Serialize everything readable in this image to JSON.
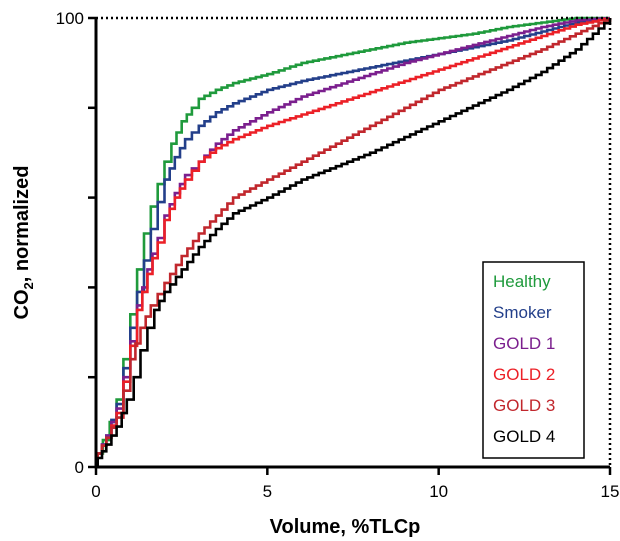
{
  "chart_data": {
    "type": "line",
    "xlabel": "Volume, %TLCp",
    "ylabel": "CO",
    "ylabel_sub": "2",
    "ylabel_suffix": ", normalized",
    "xlim": [
      0,
      15
    ],
    "ylim": [
      0,
      100
    ],
    "x_ticks": [
      0,
      5,
      10,
      15
    ],
    "x_tick_labels": [
      "0",
      "5",
      "10",
      "15"
    ],
    "y_ticks": [
      0,
      20,
      40,
      60,
      80,
      100
    ],
    "y_tick_labels": [
      "0",
      "",
      "",
      "",
      "",
      "100"
    ],
    "grid": false,
    "legend_position": "bottom-right",
    "series": [
      {
        "name": "Healthy",
        "color": "#1f9a3c",
        "points": [
          [
            0,
            0
          ],
          [
            0.05,
            3
          ],
          [
            0.2,
            6
          ],
          [
            0.4,
            10
          ],
          [
            0.6,
            15
          ],
          [
            0.8,
            24
          ],
          [
            1,
            34
          ],
          [
            1.2,
            44
          ],
          [
            1.4,
            52
          ],
          [
            1.6,
            58
          ],
          [
            1.8,
            63
          ],
          [
            2,
            68
          ],
          [
            2.2,
            72
          ],
          [
            2.5,
            77
          ],
          [
            2.8,
            80
          ],
          [
            3,
            82
          ],
          [
            3.5,
            84
          ],
          [
            4,
            85.5
          ],
          [
            5,
            87.5
          ],
          [
            6,
            90
          ],
          [
            7,
            91.5
          ],
          [
            8,
            93
          ],
          [
            9,
            94.5
          ],
          [
            10,
            95.5
          ],
          [
            11,
            96.5
          ],
          [
            12,
            98
          ],
          [
            13,
            99
          ],
          [
            14,
            100
          ],
          [
            15,
            100
          ]
        ]
      },
      {
        "name": "Smoker",
        "color": "#233f8a",
        "points": [
          [
            0,
            0
          ],
          [
            0.05,
            3
          ],
          [
            0.3,
            7
          ],
          [
            0.6,
            14
          ],
          [
            0.8,
            22
          ],
          [
            1,
            31
          ],
          [
            1.2,
            39
          ],
          [
            1.4,
            46
          ],
          [
            1.6,
            53
          ],
          [
            1.8,
            59
          ],
          [
            2,
            64
          ],
          [
            2.3,
            69
          ],
          [
            2.6,
            73
          ],
          [
            3,
            76
          ],
          [
            3.5,
            79
          ],
          [
            4,
            81
          ],
          [
            5,
            84
          ],
          [
            6,
            86
          ],
          [
            7,
            87.5
          ],
          [
            8,
            89
          ],
          [
            9,
            90.5
          ],
          [
            10,
            92
          ],
          [
            11,
            93.5
          ],
          [
            12,
            95
          ],
          [
            13,
            97
          ],
          [
            14,
            99
          ],
          [
            15,
            100
          ]
        ]
      },
      {
        "name": "GOLD 1",
        "color": "#7b1f8e",
        "points": [
          [
            0,
            0
          ],
          [
            0.05,
            3
          ],
          [
            0.3,
            7
          ],
          [
            0.6,
            13
          ],
          [
            0.8,
            20
          ],
          [
            1,
            28
          ],
          [
            1.2,
            36
          ],
          [
            1.5,
            44
          ],
          [
            1.8,
            51
          ],
          [
            2,
            56
          ],
          [
            2.3,
            61
          ],
          [
            2.6,
            65
          ],
          [
            3,
            68
          ],
          [
            3.5,
            72
          ],
          [
            4,
            75
          ],
          [
            5,
            79
          ],
          [
            6,
            82.5
          ],
          [
            7,
            85
          ],
          [
            8,
            87.5
          ],
          [
            9,
            90
          ],
          [
            10,
            92
          ],
          [
            11,
            94
          ],
          [
            12,
            96
          ],
          [
            13,
            98
          ],
          [
            14,
            99.5
          ],
          [
            15,
            100
          ]
        ]
      },
      {
        "name": "GOLD 2",
        "color": "#ec2027",
        "points": [
          [
            0,
            0
          ],
          [
            0.05,
            3
          ],
          [
            0.3,
            6.5
          ],
          [
            0.6,
            12
          ],
          [
            0.8,
            19
          ],
          [
            1,
            27
          ],
          [
            1.2,
            35
          ],
          [
            1.5,
            43
          ],
          [
            1.8,
            50
          ],
          [
            2,
            55
          ],
          [
            2.3,
            60
          ],
          [
            2.6,
            64
          ],
          [
            3,
            68
          ],
          [
            3.5,
            71
          ],
          [
            4,
            73
          ],
          [
            5,
            76
          ],
          [
            6,
            78.5
          ],
          [
            7,
            81
          ],
          [
            8,
            83.5
          ],
          [
            9,
            86
          ],
          [
            10,
            88.5
          ],
          [
            11,
            91
          ],
          [
            12,
            93.5
          ],
          [
            13,
            96
          ],
          [
            14,
            98.5
          ],
          [
            15,
            100
          ]
        ]
      },
      {
        "name": "GOLD 3",
        "color": "#c1272d",
        "points": [
          [
            0,
            0
          ],
          [
            0.05,
            3
          ],
          [
            0.3,
            6.5
          ],
          [
            0.6,
            11
          ],
          [
            0.8,
            17
          ],
          [
            1,
            24
          ],
          [
            1.3,
            31
          ],
          [
            1.6,
            36
          ],
          [
            2,
            41
          ],
          [
            2.5,
            47
          ],
          [
            3,
            52
          ],
          [
            3.5,
            56
          ],
          [
            4,
            60
          ],
          [
            5,
            64
          ],
          [
            6,
            68
          ],
          [
            7,
            72
          ],
          [
            8,
            76
          ],
          [
            9,
            80
          ],
          [
            10,
            84
          ],
          [
            11,
            87
          ],
          [
            12,
            90
          ],
          [
            13,
            93
          ],
          [
            14,
            96.5
          ],
          [
            15,
            100
          ]
        ]
      },
      {
        "name": "GOLD 4",
        "color": "#000000",
        "points": [
          [
            0,
            0
          ],
          [
            0.05,
            2
          ],
          [
            0.3,
            5
          ],
          [
            0.6,
            9
          ],
          [
            0.9,
            15
          ],
          [
            1.1,
            20
          ],
          [
            1.3,
            26
          ],
          [
            1.5,
            31
          ],
          [
            1.7,
            35
          ],
          [
            2,
            39
          ],
          [
            2.5,
            44
          ],
          [
            3,
            49
          ],
          [
            3.5,
            53
          ],
          [
            4,
            56.5
          ],
          [
            5,
            60
          ],
          [
            6,
            64
          ],
          [
            7,
            67
          ],
          [
            8,
            70
          ],
          [
            9,
            73.5
          ],
          [
            10,
            77
          ],
          [
            11,
            80.5
          ],
          [
            12,
            84
          ],
          [
            13,
            88
          ],
          [
            14,
            93
          ],
          [
            15,
            100
          ]
        ]
      }
    ]
  }
}
